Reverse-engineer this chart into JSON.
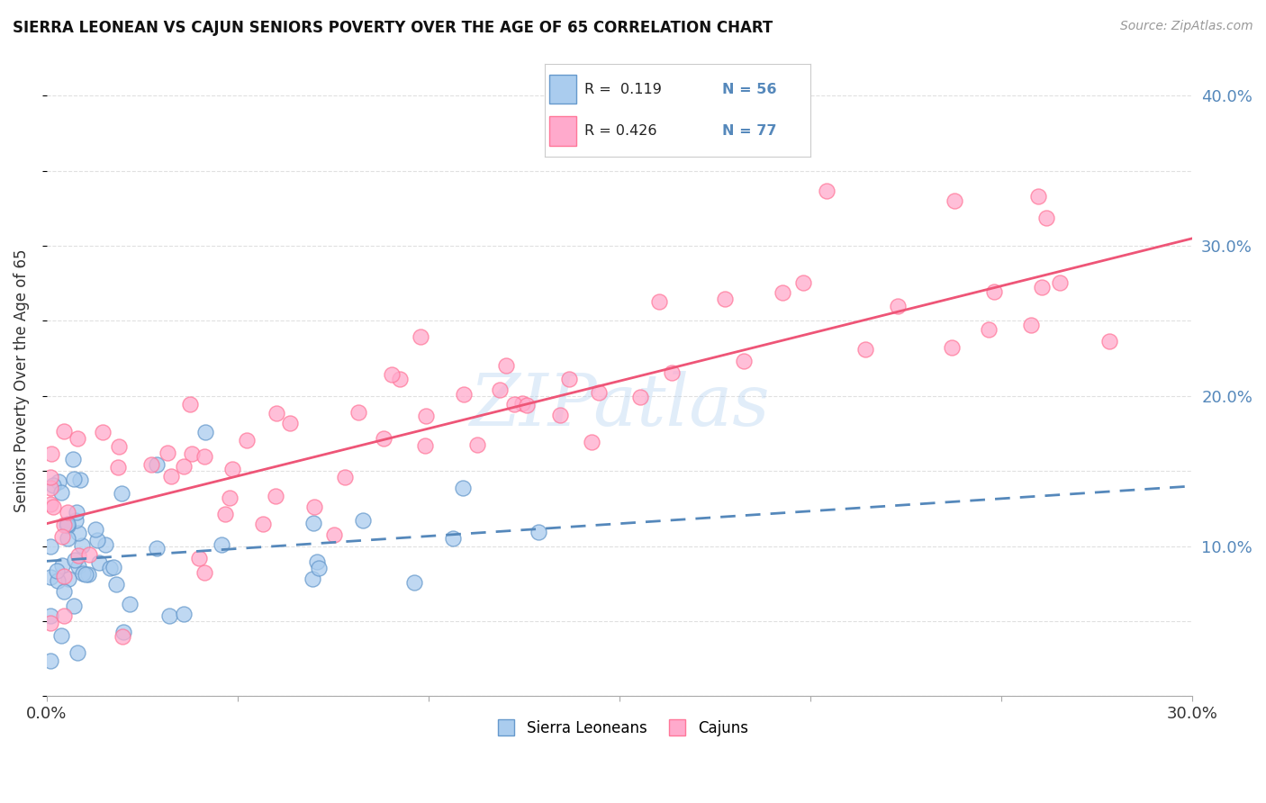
{
  "title": "SIERRA LEONEAN VS CAJUN SENIORS POVERTY OVER THE AGE OF 65 CORRELATION CHART",
  "source": "Source: ZipAtlas.com",
  "ylabel": "Seniors Poverty Over the Age of 65",
  "xlim": [
    0.0,
    0.3
  ],
  "ylim": [
    0.0,
    0.42
  ],
  "x_tick_positions": [
    0.0,
    0.05,
    0.1,
    0.15,
    0.2,
    0.25,
    0.3
  ],
  "x_tick_labels": [
    "0.0%",
    "",
    "",
    "",
    "",
    "",
    "30.0%"
  ],
  "y_tick_positions": [
    0.1,
    0.2,
    0.3,
    0.4
  ],
  "y_tick_labels": [
    "10.0%",
    "20.0%",
    "30.0%",
    "40.0%"
  ],
  "color_sl_fill": "#AACCEE",
  "color_sl_edge": "#6699CC",
  "color_cajun_fill": "#FFAACC",
  "color_cajun_edge": "#FF7799",
  "color_sl_line": "#5588BB",
  "color_cajun_line": "#EE5577",
  "watermark_text": "ZIPatlas",
  "sl_R": 0.119,
  "cajun_R": 0.426,
  "sl_N": 56,
  "cajun_N": 77,
  "sl_line_y0": 0.09,
  "sl_line_y1": 0.14,
  "cajun_line_y0": 0.115,
  "cajun_line_y1": 0.305,
  "grid_color": "#DDDDDD",
  "background_color": "#FFFFFF",
  "legend_box_color": "#FFFFFF",
  "legend_border_color": "#CCCCCC"
}
